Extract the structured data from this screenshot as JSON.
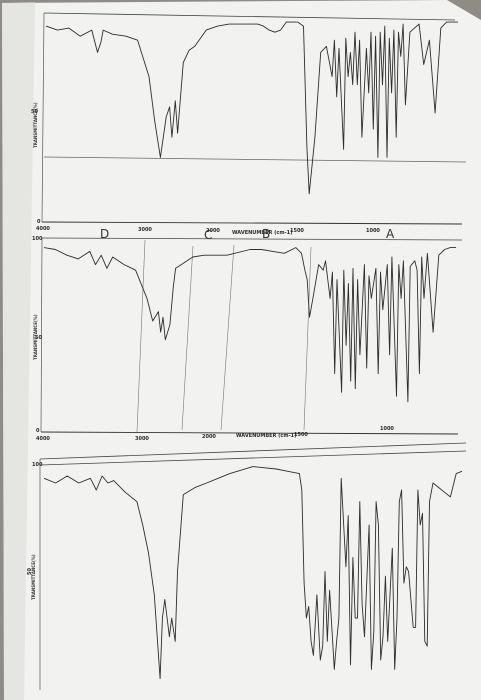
{
  "chart_data": [
    {
      "type": "line",
      "title": "",
      "xlabel": "WAVENUMBER (cm-1)",
      "ylabel": "TRANSMITTANCE(%)",
      "xlim": [
        4000,
        400
      ],
      "ylim": [
        0,
        100
      ],
      "x_ticks": [
        "4000",
        "3000",
        "2000",
        "1500",
        "1000"
      ],
      "y_ticks": [
        "50",
        "0"
      ],
      "annotations": [
        "D",
        "C",
        "B",
        "A"
      ],
      "series": [
        {
          "x": [
            4000,
            3900,
            3800,
            3700,
            3600,
            3550,
            3520,
            3500,
            3420,
            3300,
            3200,
            3100,
            3050,
            3000,
            2950,
            2920,
            2900,
            2870,
            2850,
            2800,
            2750,
            2700,
            2600,
            2500,
            2400,
            2300,
            2200,
            2150,
            2100,
            2050,
            2000,
            1950,
            1900,
            1800,
            1750,
            1720,
            1700,
            1650,
            1600,
            1550,
            1500,
            1480,
            1460,
            1440,
            1400,
            1380,
            1360,
            1340,
            1320,
            1300,
            1280,
            1260,
            1240,
            1200,
            1180,
            1160,
            1140,
            1120,
            1100,
            1080,
            1060,
            1040,
            1020,
            1000,
            980,
            960,
            940,
            920,
            900,
            880,
            860,
            820,
            780,
            740,
            700,
            650,
            600,
            550,
            500,
            450,
            400
          ],
          "y": [
            95,
            93,
            94,
            90,
            93,
            82,
            87,
            93,
            91,
            90,
            88,
            70,
            48,
            30,
            50,
            55,
            40,
            58,
            42,
            77,
            83,
            85,
            93,
            95,
            96,
            96,
            96,
            96,
            95,
            93,
            92,
            93,
            97,
            97,
            95,
            35,
            12,
            40,
            82,
            85,
            70,
            88,
            60,
            84,
            34,
            89,
            70,
            82,
            66,
            92,
            66,
            88,
            40,
            84,
            62,
            92,
            44,
            90,
            30,
            92,
            66,
            95,
            30,
            89,
            62,
            93,
            40,
            92,
            80,
            96,
            56,
            92,
            94,
            96,
            76,
            88,
            52,
            94,
            97,
            97,
            97
          ]
        }
      ]
    },
    {
      "type": "line",
      "title": "",
      "xlabel": "WAVENUMBER (cm-1)",
      "ylabel": "TRANSMITTANCE(%)",
      "xlim": [
        4000,
        400
      ],
      "ylim": [
        0,
        100
      ],
      "x_ticks": [
        "4000",
        "3000",
        "2000",
        "1500",
        "1000"
      ],
      "y_ticks": [
        "100",
        "50",
        "0"
      ],
      "series": [
        {
          "x": [
            4000,
            3900,
            3800,
            3700,
            3600,
            3550,
            3500,
            3450,
            3400,
            3300,
            3200,
            3100,
            3050,
            3000,
            2980,
            2960,
            2940,
            2900,
            2870,
            2850,
            2800,
            2750,
            2700,
            2600,
            2400,
            2200,
            2100,
            2000,
            1900,
            1800,
            1750,
            1720,
            1700,
            1680,
            1650,
            1600,
            1560,
            1540,
            1500,
            1480,
            1460,
            1440,
            1400,
            1380,
            1360,
            1340,
            1320,
            1300,
            1280,
            1260,
            1240,
            1200,
            1180,
            1160,
            1140,
            1100,
            1080,
            1060,
            1040,
            1000,
            980,
            960,
            920,
            900,
            880,
            860,
            820,
            800,
            760,
            740,
            720,
            700,
            680,
            650,
            600,
            550,
            500,
            450,
            400
          ],
          "y": [
            97,
            96,
            93,
            91,
            95,
            88,
            93,
            86,
            92,
            88,
            85,
            70,
            58,
            63,
            52,
            60,
            48,
            56,
            76,
            86,
            88,
            90,
            92,
            93,
            93,
            96,
            96,
            95,
            94,
            97,
            94,
            85,
            80,
            60,
            70,
            88,
            85,
            90,
            70,
            84,
            30,
            80,
            20,
            85,
            45,
            78,
            26,
            86,
            22,
            80,
            40,
            88,
            33,
            82,
            70,
            86,
            30,
            84,
            64,
            88,
            40,
            92,
            18,
            88,
            70,
            90,
            15,
            87,
            90,
            85,
            30,
            92,
            70,
            94,
            52,
            93,
            96,
            97,
            97
          ]
        }
      ]
    },
    {
      "type": "line",
      "title": "",
      "xlabel": "",
      "ylabel": "TRANSMITTANCE(%)",
      "xlim": [
        4000,
        400
      ],
      "ylim": [
        0,
        100
      ],
      "x_ticks": [],
      "y_ticks": [
        "100",
        "50"
      ],
      "series": [
        {
          "x": [
            4000,
            3900,
            3800,
            3700,
            3600,
            3550,
            3500,
            3450,
            3400,
            3300,
            3200,
            3150,
            3100,
            3050,
            3000,
            2980,
            2960,
            2920,
            2900,
            2870,
            2850,
            2800,
            2700,
            2600,
            2500,
            2400,
            2200,
            2000,
            1900,
            1800,
            1780,
            1760,
            1740,
            1720,
            1700,
            1680,
            1650,
            1620,
            1600,
            1580,
            1560,
            1540,
            1500,
            1480,
            1460,
            1440,
            1400,
            1380,
            1360,
            1340,
            1320,
            1300,
            1280,
            1260,
            1240,
            1200,
            1180,
            1160,
            1140,
            1120,
            1100,
            1080,
            1060,
            1040,
            1000,
            980,
            960,
            940,
            920,
            900,
            880,
            860,
            820,
            800,
            780,
            760,
            740,
            720,
            700,
            680,
            650,
            600,
            550,
            500,
            450,
            400
          ],
          "y": [
            90,
            88,
            91,
            88,
            90,
            85,
            91,
            88,
            89,
            84,
            80,
            70,
            58,
            40,
            4,
            30,
            38,
            22,
            30,
            20,
            50,
            83,
            86,
            88,
            90,
            92,
            95,
            94,
            93,
            92,
            85,
            45,
            30,
            35,
            20,
            14,
            40,
            12,
            18,
            50,
            20,
            42,
            8,
            20,
            30,
            90,
            52,
            74,
            10,
            56,
            30,
            30,
            80,
            36,
            22,
            70,
            8,
            24,
            80,
            70,
            12,
            22,
            48,
            20,
            60,
            8,
            30,
            80,
            85,
            45,
            52,
            50,
            26,
            26,
            85,
            70,
            75,
            20,
            18,
            80,
            88,
            86,
            84,
            82,
            92,
            93
          ]
        }
      ]
    }
  ]
}
